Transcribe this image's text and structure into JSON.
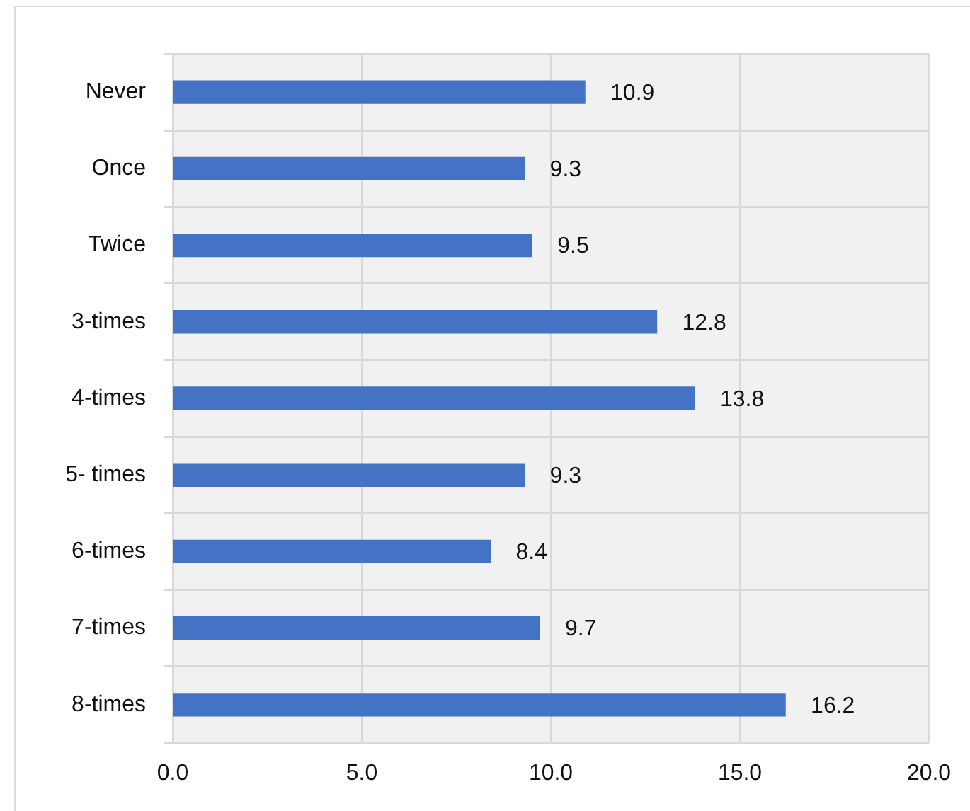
{
  "chart_data": {
    "type": "bar",
    "orientation": "horizontal",
    "categories": [
      "Never",
      "Once",
      "Twice",
      "3-times",
      "4-times",
      "5- times",
      "6-times",
      "7-times",
      "8-times"
    ],
    "values": [
      10.9,
      9.3,
      9.5,
      12.8,
      13.8,
      9.3,
      8.4,
      9.7,
      16.2
    ],
    "color": "#4472c4",
    "xlim": [
      0,
      20
    ],
    "xticks": [
      {
        "value": 0,
        "label": "0.0"
      },
      {
        "value": 5,
        "label": "5.0"
      },
      {
        "value": 10,
        "label": "10.0"
      },
      {
        "value": 15,
        "label": "15.0"
      },
      {
        "value": 20,
        "label": "20.0"
      }
    ],
    "grid": true,
    "data_labels": true
  }
}
